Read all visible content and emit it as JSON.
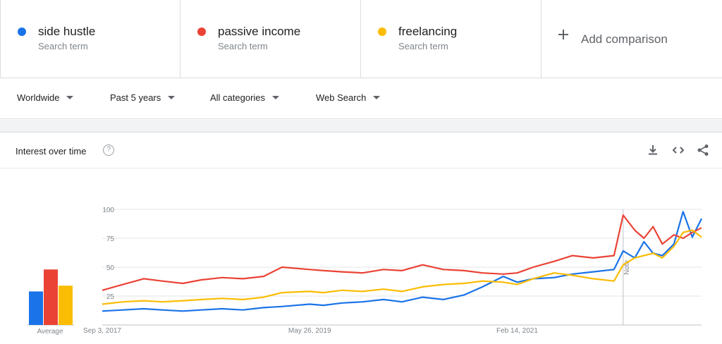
{
  "terms": [
    {
      "name": "side hustle",
      "sub": "Search term",
      "color": "#1a73e8"
    },
    {
      "name": "passive income",
      "sub": "Search term",
      "color": "#ea4335"
    },
    {
      "name": "freelancing",
      "sub": "Search term",
      "color": "#fbbc04"
    }
  ],
  "add_comparison": "Add comparison",
  "filters": {
    "location": "Worldwide",
    "time": "Past 5 years",
    "category": "All categories",
    "search_type": "Web Search"
  },
  "card": {
    "title": "Interest over time",
    "help_icon": "question-circle-icon",
    "tools": [
      "download-icon",
      "embed-icon",
      "share-icon"
    ]
  },
  "averages": {
    "label": "Average",
    "values": [
      {
        "term": "side hustle",
        "value": 29,
        "color": "#1a73e8"
      },
      {
        "term": "passive income",
        "value": 48,
        "color": "#ea4335"
      },
      {
        "term": "freelancing",
        "value": 34,
        "color": "#fbbc04"
      }
    ]
  },
  "chart_data": {
    "type": "line",
    "x_start": "2017-09-03",
    "x_end": "2022-08-28",
    "x_tick_labels": [
      {
        "date": "2017-09-03",
        "label": "Sep 3, 2017"
      },
      {
        "date": "2019-05-26",
        "label": "May 26, 2019"
      },
      {
        "date": "2021-02-14",
        "label": "Feb 14, 2021"
      }
    ],
    "ylim": [
      0,
      100
    ],
    "y_ticks": [
      25,
      50,
      75,
      100
    ],
    "grid": true,
    "note_marker": {
      "date": "2022-01-02",
      "label": "Note"
    },
    "series": [
      {
        "name": "side hustle",
        "color": "#1a73e8",
        "values": [
          {
            "date": "2017-09-03",
            "value": 12
          },
          {
            "date": "2017-11-05",
            "value": 13
          },
          {
            "date": "2018-01-07",
            "value": 14
          },
          {
            "date": "2018-03-04",
            "value": 13
          },
          {
            "date": "2018-05-06",
            "value": 12
          },
          {
            "date": "2018-07-01",
            "value": 13
          },
          {
            "date": "2018-09-02",
            "value": 14
          },
          {
            "date": "2018-11-04",
            "value": 13
          },
          {
            "date": "2019-01-06",
            "value": 15
          },
          {
            "date": "2019-03-03",
            "value": 16
          },
          {
            "date": "2019-05-26",
            "value": 18
          },
          {
            "date": "2019-07-07",
            "value": 17
          },
          {
            "date": "2019-09-01",
            "value": 19
          },
          {
            "date": "2019-11-03",
            "value": 20
          },
          {
            "date": "2020-01-05",
            "value": 22
          },
          {
            "date": "2020-03-01",
            "value": 20
          },
          {
            "date": "2020-05-03",
            "value": 24
          },
          {
            "date": "2020-07-05",
            "value": 22
          },
          {
            "date": "2020-09-06",
            "value": 26
          },
          {
            "date": "2020-11-01",
            "value": 33
          },
          {
            "date": "2021-01-03",
            "value": 42
          },
          {
            "date": "2021-02-14",
            "value": 37
          },
          {
            "date": "2021-04-04",
            "value": 40
          },
          {
            "date": "2021-06-06",
            "value": 41
          },
          {
            "date": "2021-08-01",
            "value": 44
          },
          {
            "date": "2021-10-03",
            "value": 46
          },
          {
            "date": "2021-12-05",
            "value": 48
          },
          {
            "date": "2022-01-02",
            "value": 64
          },
          {
            "date": "2022-02-06",
            "value": 58
          },
          {
            "date": "2022-03-06",
            "value": 72
          },
          {
            "date": "2022-04-03",
            "value": 62
          },
          {
            "date": "2022-05-01",
            "value": 60
          },
          {
            "date": "2022-06-05",
            "value": 70
          },
          {
            "date": "2022-07-03",
            "value": 98
          },
          {
            "date": "2022-07-31",
            "value": 76
          },
          {
            "date": "2022-08-28",
            "value": 92
          }
        ]
      },
      {
        "name": "passive income",
        "color": "#ea4335",
        "values": [
          {
            "date": "2017-09-03",
            "value": 30
          },
          {
            "date": "2017-11-05",
            "value": 35
          },
          {
            "date": "2018-01-07",
            "value": 40
          },
          {
            "date": "2018-03-04",
            "value": 38
          },
          {
            "date": "2018-05-06",
            "value": 36
          },
          {
            "date": "2018-07-01",
            "value": 39
          },
          {
            "date": "2018-09-02",
            "value": 41
          },
          {
            "date": "2018-11-04",
            "value": 40
          },
          {
            "date": "2019-01-06",
            "value": 42
          },
          {
            "date": "2019-03-03",
            "value": 50
          },
          {
            "date": "2019-05-26",
            "value": 48
          },
          {
            "date": "2019-07-07",
            "value": 47
          },
          {
            "date": "2019-09-01",
            "value": 46
          },
          {
            "date": "2019-11-03",
            "value": 45
          },
          {
            "date": "2020-01-05",
            "value": 48
          },
          {
            "date": "2020-03-01",
            "value": 47
          },
          {
            "date": "2020-05-03",
            "value": 52
          },
          {
            "date": "2020-07-05",
            "value": 48
          },
          {
            "date": "2020-09-06",
            "value": 47
          },
          {
            "date": "2020-11-01",
            "value": 45
          },
          {
            "date": "2021-01-03",
            "value": 44
          },
          {
            "date": "2021-02-14",
            "value": 45
          },
          {
            "date": "2021-04-04",
            "value": 50
          },
          {
            "date": "2021-06-06",
            "value": 55
          },
          {
            "date": "2021-08-01",
            "value": 60
          },
          {
            "date": "2021-10-03",
            "value": 58
          },
          {
            "date": "2021-12-05",
            "value": 60
          },
          {
            "date": "2022-01-02",
            "value": 95
          },
          {
            "date": "2022-02-06",
            "value": 82
          },
          {
            "date": "2022-03-06",
            "value": 75
          },
          {
            "date": "2022-04-03",
            "value": 85
          },
          {
            "date": "2022-05-01",
            "value": 70
          },
          {
            "date": "2022-06-05",
            "value": 78
          },
          {
            "date": "2022-07-03",
            "value": 75
          },
          {
            "date": "2022-07-31",
            "value": 80
          },
          {
            "date": "2022-08-28",
            "value": 84
          }
        ]
      },
      {
        "name": "freelancing",
        "color": "#fbbc04",
        "values": [
          {
            "date": "2017-09-03",
            "value": 18
          },
          {
            "date": "2017-11-05",
            "value": 20
          },
          {
            "date": "2018-01-07",
            "value": 21
          },
          {
            "date": "2018-03-04",
            "value": 20
          },
          {
            "date": "2018-05-06",
            "value": 21
          },
          {
            "date": "2018-07-01",
            "value": 22
          },
          {
            "date": "2018-09-02",
            "value": 23
          },
          {
            "date": "2018-11-04",
            "value": 22
          },
          {
            "date": "2019-01-06",
            "value": 24
          },
          {
            "date": "2019-03-03",
            "value": 28
          },
          {
            "date": "2019-05-26",
            "value": 29
          },
          {
            "date": "2019-07-07",
            "value": 28
          },
          {
            "date": "2019-09-01",
            "value": 30
          },
          {
            "date": "2019-11-03",
            "value": 29
          },
          {
            "date": "2020-01-05",
            "value": 31
          },
          {
            "date": "2020-03-01",
            "value": 29
          },
          {
            "date": "2020-05-03",
            "value": 33
          },
          {
            "date": "2020-07-05",
            "value": 35
          },
          {
            "date": "2020-09-06",
            "value": 36
          },
          {
            "date": "2020-11-01",
            "value": 38
          },
          {
            "date": "2021-01-03",
            "value": 37
          },
          {
            "date": "2021-02-14",
            "value": 35
          },
          {
            "date": "2021-04-04",
            "value": 40
          },
          {
            "date": "2021-06-06",
            "value": 45
          },
          {
            "date": "2021-08-01",
            "value": 43
          },
          {
            "date": "2021-10-03",
            "value": 40
          },
          {
            "date": "2021-12-05",
            "value": 38
          },
          {
            "date": "2022-01-02",
            "value": 52
          },
          {
            "date": "2022-02-06",
            "value": 58
          },
          {
            "date": "2022-03-06",
            "value": 60
          },
          {
            "date": "2022-04-03",
            "value": 62
          },
          {
            "date": "2022-05-01",
            "value": 58
          },
          {
            "date": "2022-06-05",
            "value": 68
          },
          {
            "date": "2022-07-03",
            "value": 80
          },
          {
            "date": "2022-07-31",
            "value": 82
          },
          {
            "date": "2022-08-28",
            "value": 76
          }
        ]
      }
    ]
  }
}
